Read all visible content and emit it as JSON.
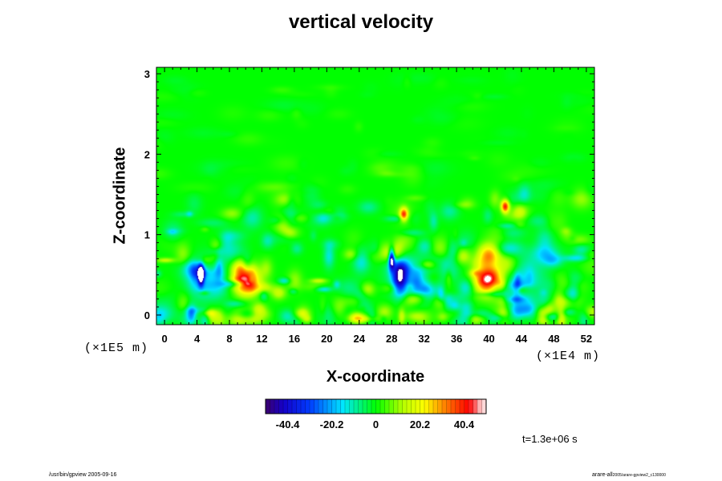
{
  "chart_data": {
    "type": "heatmap",
    "title": "vertical velocity",
    "xlabel": "X-coordinate",
    "ylabel": "Z-coordinate",
    "x_scale_note": "(×1E4 m)",
    "z_scale_note": "(×1E5 m)",
    "xlim": [
      -1,
      53
    ],
    "ylim": [
      -0.12,
      3.08
    ],
    "x_ticks": [
      "0",
      "4",
      "8",
      "12",
      "16",
      "20",
      "24",
      "28",
      "32",
      "36",
      "40",
      "44",
      "48",
      "52"
    ],
    "y_ticks": [
      "0",
      "1",
      "2",
      "3"
    ],
    "colorbar": {
      "ticks": [
        "-40.4",
        "-20.2",
        "0",
        "20.2",
        "40.4"
      ],
      "tick_values": [
        -40.4,
        -20.2,
        0,
        20.2,
        40.4
      ],
      "range": [
        -50.5,
        50.5
      ],
      "colormap": "rainbow (purple-blue-cyan-green-yellow-red-white)"
    },
    "time_label": "t=1.3e+06 s",
    "features": [
      {
        "kind": "updraft",
        "x": 10,
        "z": 0.45,
        "value": 40
      },
      {
        "kind": "updraft",
        "x": 40,
        "z": 0.42,
        "value": 55
      },
      {
        "kind": "updraft",
        "x": 29.5,
        "z": 1.25,
        "value": 35
      },
      {
        "kind": "updraft",
        "x": 42,
        "z": 1.35,
        "value": 40
      },
      {
        "kind": "downdraft",
        "x": 4.5,
        "z": 0.5,
        "value": -48
      },
      {
        "kind": "downdraft",
        "x": 29,
        "z": 0.45,
        "value": -38
      },
      {
        "kind": "downdraft",
        "x": 28,
        "z": 0.7,
        "value": -50
      }
    ]
  },
  "footer": {
    "left": "/usr/bin/gpview 2005-09-16",
    "right_main": "arare-all",
    "right_small": "2005/arare-gpview2_c130000"
  }
}
